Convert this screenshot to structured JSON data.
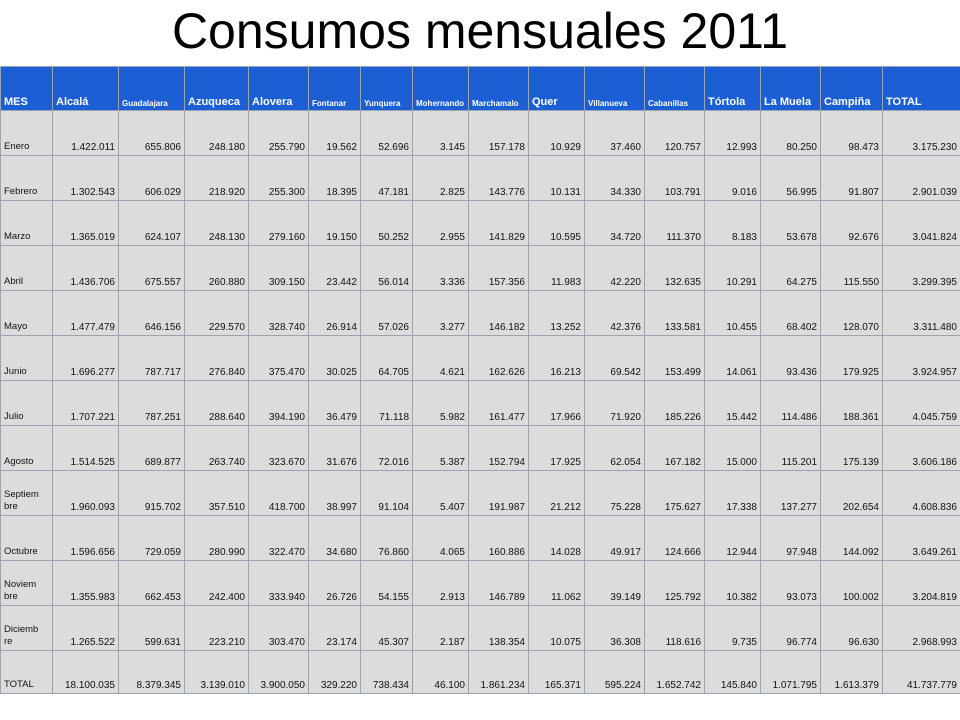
{
  "title": "Consumos mensuales 2011",
  "header_color": "#1c5fd4",
  "cell_color": "#dcdcdc",
  "columns": [
    "MES",
    "Alcalá",
    "Guadalajara",
    "Azuqueca",
    "Alovera",
    "Fontanar",
    "Yunquera",
    "Mohernando",
    "Marchamalo",
    "Quer",
    "Villanueva",
    "Cabanillas",
    "Tórtola",
    "La Muela",
    "Campiña",
    "TOTAL"
  ],
  "rows": [
    [
      "Enero",
      "1.422.011",
      "655.806",
      "248.180",
      "255.790",
      "19.562",
      "52.696",
      "3.145",
      "157.178",
      "10.929",
      "37.460",
      "120.757",
      "12.993",
      "80.250",
      "98.473",
      "3.175.230"
    ],
    [
      "Febrero",
      "1.302.543",
      "606.029",
      "218.920",
      "255.300",
      "18.395",
      "47.181",
      "2.825",
      "143.776",
      "10.131",
      "34.330",
      "103.791",
      "9.016",
      "56.995",
      "91.807",
      "2.901.039"
    ],
    [
      "Marzo",
      "1.365.019",
      "624.107",
      "248.130",
      "279.160",
      "19.150",
      "50.252",
      "2.955",
      "141.829",
      "10.595",
      "34.720",
      "111.370",
      "8.183",
      "53.678",
      "92.676",
      "3.041.824"
    ],
    [
      "Abril",
      "1.436.706",
      "675.557",
      "260.880",
      "309.150",
      "23.442",
      "56.014",
      "3.336",
      "157.356",
      "11.983",
      "42.220",
      "132.635",
      "10.291",
      "64.275",
      "115.550",
      "3.299.395"
    ],
    [
      "Mayo",
      "1.477.479",
      "646.156",
      "229.570",
      "328.740",
      "26.914",
      "57.026",
      "3.277",
      "146.182",
      "13.252",
      "42.376",
      "133.581",
      "10.455",
      "68.402",
      "128.070",
      "3.311.480"
    ],
    [
      "Junio",
      "1.696.277",
      "787.717",
      "276.840",
      "375.470",
      "30.025",
      "64.705",
      "4.621",
      "162.626",
      "16.213",
      "69.542",
      "153.499",
      "14.061",
      "93.436",
      "179.925",
      "3.924.957"
    ],
    [
      "Julio",
      "1.707.221",
      "787.251",
      "288.640",
      "394.190",
      "36.479",
      "71.118",
      "5.982",
      "161.477",
      "17.966",
      "71.920",
      "185.226",
      "15.442",
      "114.486",
      "188.361",
      "4.045.759"
    ],
    [
      "Agosto",
      "1.514.525",
      "689.877",
      "263.740",
      "323.670",
      "31.676",
      "72.016",
      "5.387",
      "152.794",
      "17.925",
      "62.054",
      "167.182",
      "15.000",
      "115.201",
      "175.139",
      "3.606.186"
    ],
    [
      "Septiem bre",
      "1.960.093",
      "915.702",
      "357.510",
      "418.700",
      "38.997",
      "91.104",
      "5.407",
      "191.987",
      "21.212",
      "75.228",
      "175.627",
      "17.338",
      "137.277",
      "202.654",
      "4.608.836"
    ],
    [
      "Octubre",
      "1.596.656",
      "729.059",
      "280.990",
      "322.470",
      "34.680",
      "76.860",
      "4.065",
      "160.886",
      "14.028",
      "49.917",
      "124.666",
      "12.944",
      "97.948",
      "144.092",
      "3.649.261"
    ],
    [
      "Noviem bre",
      "1.355.983",
      "662.453",
      "242.400",
      "333.940",
      "26.726",
      "54.155",
      "2.913",
      "146.789",
      "11.062",
      "39.149",
      "125.792",
      "10.382",
      "93.073",
      "100.002",
      "3.204.819"
    ],
    [
      "Diciemb re",
      "1.265.522",
      "599.631",
      "223.210",
      "303.470",
      "23.174",
      "45.307",
      "2.187",
      "138.354",
      "10.075",
      "36.308",
      "118.616",
      "9.735",
      "96.774",
      "96.630",
      "2.968.993"
    ]
  ],
  "total_row": [
    "TOTAL",
    "18.100.035",
    "8.379.345",
    "3.139.010",
    "3.900.050",
    "329.220",
    "738.434",
    "46.100",
    "1.861.234",
    "165.371",
    "595.224",
    "1.652.742",
    "145.840",
    "1.071.795",
    "1.613.379",
    "41.737.779"
  ]
}
